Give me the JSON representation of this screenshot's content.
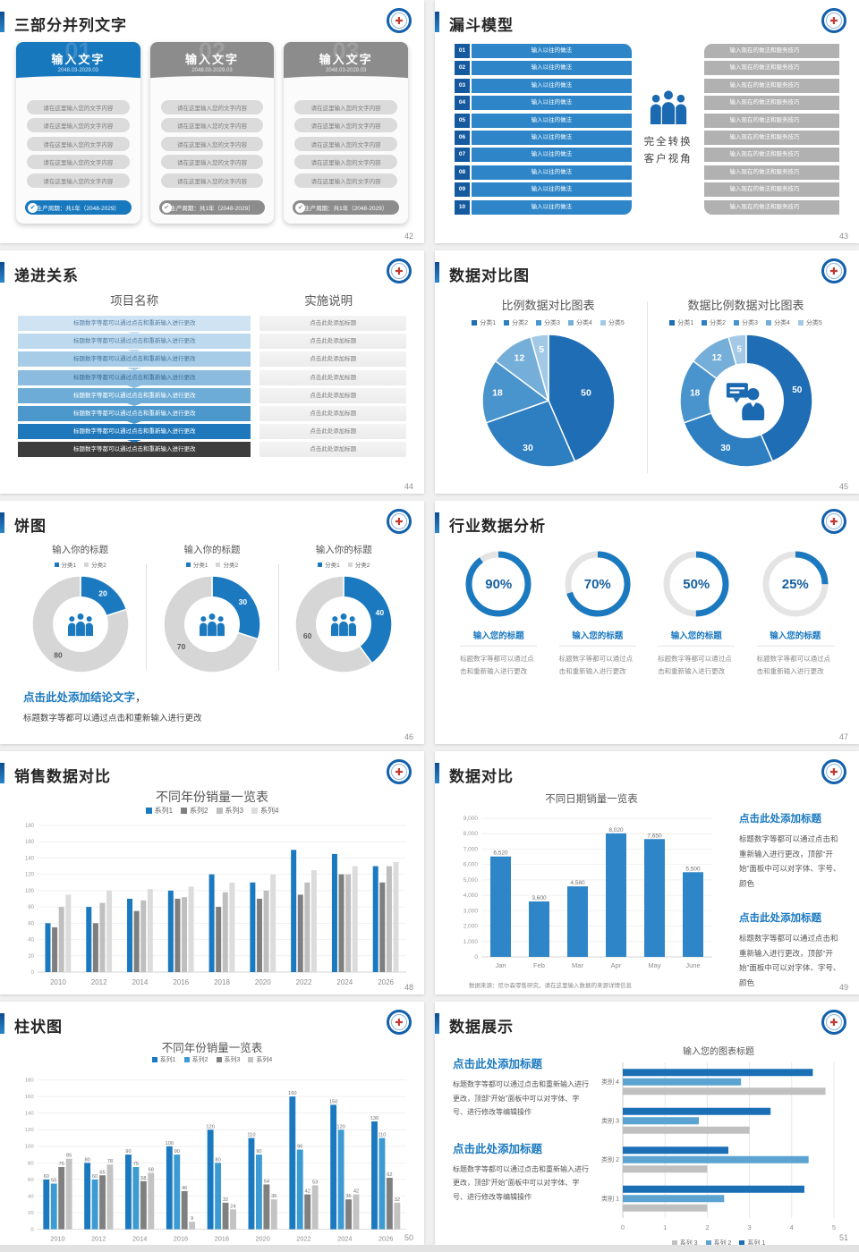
{
  "page": {
    "background": "#f0f0f0",
    "bottom_strip_color": "#e2e2e2",
    "accent_color": "#1b79c0"
  },
  "logo": {
    "name": "hospital-badge-logo",
    "glyph": "✚",
    "ring_color": "#1360ac",
    "glyph_color": "#c23a30"
  },
  "slides": {
    "s42": {
      "title": "三部分并列文字",
      "page_no": "42",
      "cards": [
        {
          "number": "01",
          "header": "输入文字",
          "date": "2048.03-2029.03",
          "color": "#1878be",
          "items": [
            "请在这里输入您的文字内容",
            "请在这里输入您的文字内容",
            "请在这里输入您的文字内容",
            "请在这里输入您的文字内容",
            "请在这里输入您的文字内容"
          ],
          "footer": "生产周期：共1年（2048-2029）"
        },
        {
          "number": "02",
          "header": "输入文字",
          "date": "2048.03-2029.03",
          "color": "#8c8c8c",
          "items": [
            "请在这里输入您的文字内容",
            "请在这里输入您的文字内容",
            "请在这里输入您的文字内容",
            "请在这里输入您的文字内容",
            "请在这里输入您的文字内容"
          ],
          "footer": "生产周期：共1年（2048-2029）"
        },
        {
          "number": "03",
          "header": "输入文字",
          "date": "2048.03-2029.03",
          "color": "#8c8c8c",
          "items": [
            "请在这里输入您的文字内容",
            "请在这里输入您的文字内容",
            "请在这里输入您的文字内容",
            "请在这里输入您的文字内容",
            "请在这里输入您的文字内容"
          ],
          "footer": "生产周期：共1年（2048-2029）"
        }
      ]
    },
    "s43": {
      "title": "漏斗模型",
      "page_no": "43",
      "numbers": [
        "01",
        "02",
        "03",
        "04",
        "05",
        "06",
        "07",
        "08",
        "09",
        "10"
      ],
      "left_label": "输入以往的做法",
      "right_label": "输入现在的做法和服务技巧",
      "center_line1": "完全转换",
      "center_line2": "客户视角"
    },
    "s44": {
      "title": "递进关系",
      "page_no": "44",
      "col1": "项目名称",
      "col2": "实施说明",
      "left_text": "标题数字等都可以通过点击和重新输入进行更改",
      "right_text": "点击此处添加标题",
      "row_colors": [
        "#cfe3f3",
        "#bdd9ee",
        "#a6cce7",
        "#8bbcdf",
        "#6dacd6",
        "#4c97cb",
        "#1f78bb",
        "#3d3d3d"
      ],
      "row_text_colors": [
        "#527da0",
        "#527da0",
        "#44749c",
        "#3c6a94",
        "#ffffff",
        "#ffffff",
        "#ffffff",
        "#ffffff"
      ]
    },
    "s45": {
      "title": "数据对比图",
      "page_no": "45",
      "slice_colors": [
        "#1f6db5",
        "#2e7fc1",
        "#4a94cd",
        "#74aed9",
        "#a3c9e6"
      ],
      "chart_left": {
        "type": "pie",
        "title": "比例数据对比图表",
        "legend": [
          "分类1",
          "分类2",
          "分类3",
          "分类4",
          "分类5"
        ],
        "values": [
          50,
          30,
          18,
          12,
          5
        ]
      },
      "chart_right": {
        "type": "donut",
        "title": "数据比例数据对比图表",
        "legend": [
          "分类1",
          "分类2",
          "分类3",
          "分类4",
          "分类5"
        ],
        "values": [
          50,
          30,
          18,
          12,
          5
        ]
      }
    },
    "s46": {
      "title": "饼图",
      "page_no": "46",
      "charts": [
        {
          "type": "donut",
          "title": "输入你的标题",
          "legend": [
            "分类1",
            "分类2"
          ],
          "values": [
            20,
            80
          ]
        },
        {
          "type": "donut",
          "title": "输入你的标题",
          "legend": [
            "分类1",
            "分类2"
          ],
          "values": [
            30,
            70
          ]
        },
        {
          "type": "donut",
          "title": "输入你的标题",
          "legend": [
            "分类1",
            "分类2"
          ],
          "values": [
            40,
            60
          ]
        }
      ],
      "colors": [
        "#1b79c0",
        "#d6d6d6"
      ],
      "conclusion_title": "点击此处添加结论文字",
      "conclusion_comma": "，",
      "conclusion_body": "标题数字等都可以通过点击和重新输入进行更改"
    },
    "s47": {
      "title": "行业数据分析",
      "page_no": "47",
      "items": [
        {
          "pct": 90,
          "label": "90%",
          "title": "输入您的标题",
          "body": "标题数字等都可以通过点击和重新输入进行更改"
        },
        {
          "pct": 70,
          "label": "70%",
          "title": "输入您的标题",
          "body": "标题数字等都可以通过点击和重新输入进行更改"
        },
        {
          "pct": 50,
          "label": "50%",
          "title": "输入您的标题",
          "body": "标题数字等都可以通过点击和重新输入进行更改"
        },
        {
          "pct": 25,
          "label": "25%",
          "title": "输入您的标题",
          "body": "标题数字等都可以通过点击和重新输入进行更改"
        }
      ]
    },
    "s48": {
      "title": "销售数据对比",
      "page_no": "48",
      "chart": {
        "type": "bar",
        "title": "不同年份销量一览表",
        "categories": [
          "2010",
          "2012",
          "2014",
          "2016",
          "2018",
          "2020",
          "2022",
          "2024",
          "2026"
        ],
        "series": [
          {
            "name": "系列1",
            "color": "#1b79c0",
            "values": [
              60,
              80,
              90,
              100,
              120,
              110,
              150,
              145,
              130
            ]
          },
          {
            "name": "系列2",
            "color": "#7f7f7f",
            "values": [
              55,
              60,
              75,
              90,
              80,
              90,
              95,
              120,
              110
            ]
          },
          {
            "name": "系列3",
            "color": "#bfbfbf",
            "values": [
              80,
              85,
              88,
              92,
              98,
              100,
              110,
              120,
              130
            ]
          },
          {
            "name": "系列4",
            "color": "#dcdcdc",
            "values": [
              95,
              100,
              102,
              105,
              110,
              120,
              125,
              130,
              135
            ]
          }
        ],
        "ylim": [
          0,
          180
        ],
        "ystep": 20,
        "grid": true,
        "legend_position": "top"
      }
    },
    "s49": {
      "title": "数据对比",
      "page_no": "49",
      "chart": {
        "type": "bar",
        "title": "不同日期销量一览表",
        "categories": [
          "Jan",
          "Feb",
          "Mar",
          "Apr",
          "May",
          "June"
        ],
        "values": [
          6520,
          3600,
          4580,
          8020,
          7650,
          5500
        ],
        "value_labels": [
          "6,520",
          "3,600",
          "4,580",
          "8,020",
          "7,650",
          "5,500"
        ],
        "y_labels": [
          "0",
          "1,000",
          "2,000",
          "3,000",
          "4,000",
          "5,000",
          "6,000",
          "7,000",
          "8,000",
          "9,000"
        ],
        "ylim": [
          0,
          9000
        ],
        "ystep": 1000,
        "grid": true,
        "bar_color": "#2e86c8"
      },
      "source": "数据来源：尼尔森零售研究，请在这里输入数据的来源详情信息",
      "blocks": [
        {
          "title": "点击此处添加标题",
          "body": "标题数字等都可以通过点击和重新输入进行更改，顶部“开始”面板中可以对字体、字号、颜色"
        },
        {
          "title": "点击此处添加标题",
          "body": "标题数字等都可以通过点击和重新输入进行更改，顶部“开始”面板中可以对字体、字号、颜色"
        }
      ]
    },
    "s50": {
      "title": "柱状图",
      "page_no": "50",
      "chart": {
        "type": "bar",
        "title": "不同年份销量一览表",
        "categories": [
          "2010",
          "2012",
          "2014",
          "2016",
          "2018",
          "2020",
          "2022",
          "2024",
          "2026"
        ],
        "series": [
          {
            "name": "系列1",
            "color": "#1b79c0",
            "values": [
              60,
              80,
              90,
              100,
              120,
              110,
              160,
              150,
              130
            ]
          },
          {
            "name": "系列2",
            "color": "#3d9bd3",
            "values": [
              55,
              60,
              75,
              90,
              80,
              90,
              96,
              120,
              110
            ]
          },
          {
            "name": "系列3",
            "color": "#808080",
            "values": [
              75,
              65,
              58,
              46,
              32,
              54,
              42,
              36,
              62
            ]
          },
          {
            "name": "系列4",
            "color": "#c3c3c3",
            "values": [
              85,
              78,
              68,
              9,
              24,
              36,
              53,
              42,
              32
            ]
          }
        ],
        "ylim": [
          0,
          180
        ],
        "ystep": 20,
        "grid": true,
        "data_labels": true,
        "legend_position": "top"
      }
    },
    "s51": {
      "title": "数据展示",
      "page_no": "51",
      "blocks": [
        {
          "title": "点击此处添加标题",
          "body": "标题数字等都可以通过点击和重新输入进行更改，顶部“开始”面板中可以对字体、字号、进行修改等编辑操作"
        },
        {
          "title": "点击此处添加标题",
          "body": "标题数字等都可以通过点击和重新输入进行更改，顶部“开始”面板中可以对字体、字号、进行修改等编辑操作"
        }
      ],
      "chart": {
        "type": "bar",
        "orientation": "horizontal",
        "title": "输入您的图表标题",
        "categories": [
          "类别 1",
          "类别 2",
          "类别 3",
          "类别 4"
        ],
        "series": [
          {
            "name": "系列 3",
            "color": "#c0c0c0",
            "values": [
              2.0,
              2.0,
              3.0,
              4.8
            ]
          },
          {
            "name": "系列 2",
            "color": "#5ba3d0",
            "values": [
              2.4,
              4.4,
              1.8,
              2.8
            ]
          },
          {
            "name": "系列 1",
            "color": "#1b6fb5",
            "values": [
              4.3,
              2.5,
              3.5,
              4.5
            ]
          }
        ],
        "x_ticks": [
          "0",
          "1",
          "2",
          "3",
          "4",
          "5"
        ],
        "xlim": [
          0,
          5
        ],
        "grid": true,
        "legend_position": "bottom"
      }
    }
  }
}
